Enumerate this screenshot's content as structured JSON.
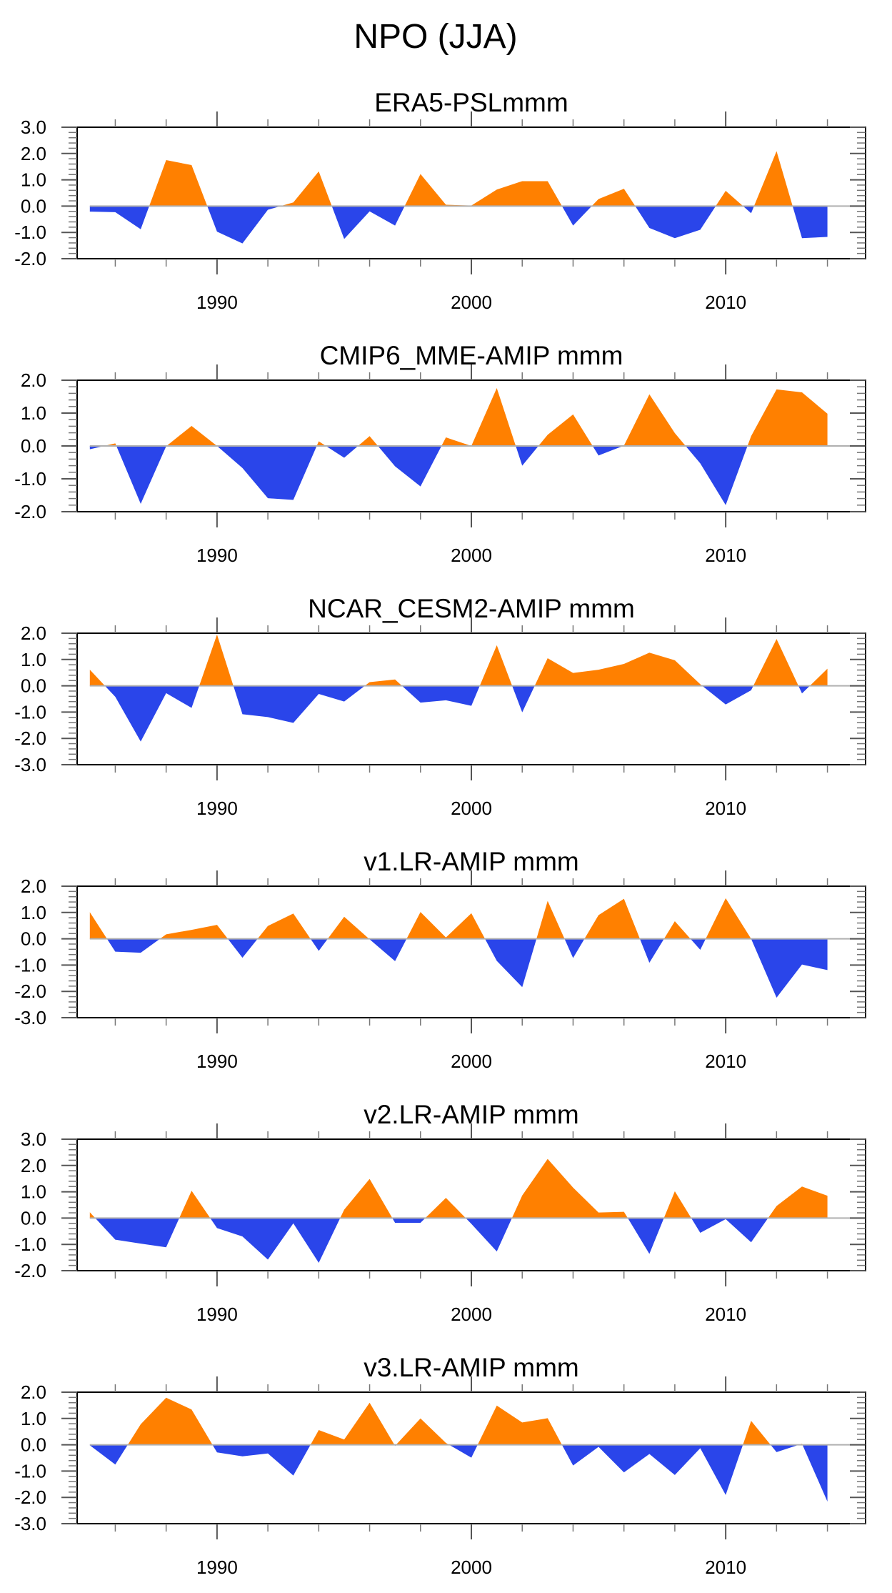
{
  "figure": {
    "title": "NPO (JJA)"
  },
  "colors": {
    "positive": "#ff8000",
    "negative": "#2a45ea",
    "zero_line": "#b0b0b0",
    "frame": "#000000"
  },
  "chart_data": [
    {
      "type": "area",
      "title": "ERA5-PSLmmm",
      "xlabel": "",
      "ylabel": "",
      "xlim": [
        1984.5,
        2015.5
      ],
      "ylim": [
        -2.0,
        3.0
      ],
      "yticks": [
        "3.0",
        "2.0",
        "1.0",
        "0.0",
        "-1.0",
        "-2.0"
      ],
      "ytick_values": [
        3,
        2,
        1,
        0,
        -1,
        -2
      ],
      "xticks": [
        "1990",
        "2000",
        "2010"
      ],
      "xtick_values": [
        1990,
        2000,
        2010
      ],
      "grid": false,
      "fill_above_zero": "positive",
      "fill_below_zero": "negative",
      "x": [
        1985,
        1986,
        1987,
        1988,
        1989,
        1990,
        1991,
        1992,
        1993,
        1994,
        1995,
        1996,
        1997,
        1998,
        1999,
        2000,
        2001,
        2002,
        2003,
        2004,
        2005,
        2006,
        2007,
        2008,
        2009,
        2010,
        2011,
        2012,
        2013,
        2014
      ],
      "values": [
        -0.21,
        -0.23,
        -0.88,
        1.75,
        1.56,
        -0.97,
        -1.42,
        -0.14,
        0.14,
        1.32,
        -1.25,
        -0.2,
        -0.74,
        1.22,
        0.05,
        0.02,
        0.63,
        0.95,
        0.95,
        -0.74,
        0.27,
        0.66,
        -0.83,
        -1.22,
        -0.9,
        0.58,
        -0.27,
        2.09,
        -1.22,
        -1.17
      ]
    },
    {
      "type": "area",
      "title": "CMIP6_MME-AMIP  mmm",
      "xlabel": "",
      "ylabel": "",
      "xlim": [
        1984.5,
        2015.5
      ],
      "ylim": [
        -2.0,
        2.0
      ],
      "yticks": [
        "2.0",
        "1.0",
        "0.0",
        "-1.0",
        "-2.0"
      ],
      "ytick_values": [
        2,
        1,
        0,
        -1,
        -2
      ],
      "xticks": [
        "1990",
        "2000",
        "2010"
      ],
      "xtick_values": [
        1990,
        2000,
        2010
      ],
      "grid": false,
      "fill_above_zero": "positive",
      "fill_below_zero": "negative",
      "x": [
        1985,
        1986,
        1987,
        1988,
        1989,
        1990,
        1991,
        1992,
        1993,
        1994,
        1995,
        1996,
        1997,
        1998,
        1999,
        2000,
        2001,
        2002,
        2003,
        2004,
        2005,
        2006,
        2007,
        2008,
        2009,
        2010,
        2011,
        2012,
        2013,
        2014
      ],
      "values": [
        -0.1,
        0.08,
        -1.76,
        -0.01,
        0.61,
        0.0,
        -0.67,
        -1.59,
        -1.64,
        0.14,
        -0.36,
        0.3,
        -0.62,
        -1.23,
        0.26,
        0.0,
        1.76,
        -0.6,
        0.34,
        0.96,
        -0.29,
        0.01,
        1.57,
        0.39,
        -0.53,
        -1.8,
        0.3,
        1.72,
        1.63,
        0.98
      ]
    },
    {
      "type": "area",
      "title": "NCAR_CESM2-AMIP  mmm",
      "xlabel": "",
      "ylabel": "",
      "xlim": [
        1984.5,
        2015.5
      ],
      "ylim": [
        -3.0,
        2.0
      ],
      "yticks": [
        "2.0",
        "1.0",
        "0.0",
        "-1.0",
        "-2.0",
        "-3.0"
      ],
      "ytick_values": [
        2,
        1,
        0,
        -1,
        -2,
        -3
      ],
      "xticks": [
        "1990",
        "2000",
        "2010"
      ],
      "xtick_values": [
        1990,
        2000,
        2010
      ],
      "grid": false,
      "fill_above_zero": "positive",
      "fill_below_zero": "negative",
      "x": [
        1985,
        1986,
        1987,
        1988,
        1989,
        1990,
        1991,
        1992,
        1993,
        1994,
        1995,
        1996,
        1997,
        1998,
        1999,
        2000,
        2001,
        2002,
        2003,
        2004,
        2005,
        2006,
        2007,
        2008,
        2009,
        2010,
        2011,
        2012,
        2013,
        2014
      ],
      "values": [
        0.61,
        -0.42,
        -2.12,
        -0.28,
        -0.84,
        1.95,
        -1.08,
        -1.19,
        -1.41,
        -0.31,
        -0.6,
        0.14,
        0.24,
        -0.64,
        -0.55,
        -0.76,
        1.54,
        -1.01,
        1.05,
        0.49,
        0.61,
        0.83,
        1.26,
        0.97,
        0.06,
        -0.71,
        -0.17,
        1.78,
        -0.29,
        0.65
      ]
    },
    {
      "type": "area",
      "title": "v1.LR-AMIP  mmm",
      "xlabel": "",
      "ylabel": "",
      "xlim": [
        1984.5,
        2015.5
      ],
      "ylim": [
        -3.0,
        2.0
      ],
      "yticks": [
        "2.0",
        "1.0",
        "0.0",
        "-1.0",
        "-2.0",
        "-3.0"
      ],
      "ytick_values": [
        2,
        1,
        0,
        -1,
        -2,
        -3
      ],
      "xticks": [
        "1990",
        "2000",
        "2010"
      ],
      "xtick_values": [
        1990,
        2000,
        2010
      ],
      "grid": false,
      "fill_above_zero": "positive",
      "fill_below_zero": "negative",
      "x": [
        1985,
        1986,
        1987,
        1988,
        1989,
        1990,
        1991,
        1992,
        1993,
        1994,
        1995,
        1996,
        1997,
        1998,
        1999,
        2000,
        2001,
        2002,
        2003,
        2004,
        2005,
        2006,
        2007,
        2008,
        2009,
        2010,
        2011,
        2012,
        2013,
        2014
      ],
      "values": [
        1.01,
        -0.49,
        -0.53,
        0.17,
        0.34,
        0.53,
        -0.72,
        0.49,
        0.96,
        -0.46,
        0.84,
        -0.02,
        -0.85,
        1.02,
        0.05,
        0.97,
        -0.84,
        -1.84,
        1.44,
        -0.73,
        0.9,
        1.52,
        -0.91,
        0.67,
        -0.42,
        1.54,
        0.0,
        -2.24,
        -0.98,
        -1.19
      ]
    },
    {
      "type": "area",
      "title": "v2.LR-AMIP  mmm",
      "xlabel": "",
      "ylabel": "",
      "xlim": [
        1984.5,
        2015.5
      ],
      "ylim": [
        -2.0,
        3.0
      ],
      "yticks": [
        "3.0",
        "2.0",
        "1.0",
        "0.0",
        "-1.0",
        "-2.0"
      ],
      "ytick_values": [
        3,
        2,
        1,
        0,
        -1,
        -2
      ],
      "xticks": [
        "1990",
        "2000",
        "2010"
      ],
      "xtick_values": [
        1990,
        2000,
        2010
      ],
      "grid": false,
      "fill_above_zero": "positive",
      "fill_below_zero": "negative",
      "x": [
        1985,
        1986,
        1987,
        1988,
        1989,
        1990,
        1991,
        1992,
        1993,
        1994,
        1995,
        1996,
        1997,
        1998,
        1999,
        2000,
        2001,
        2002,
        2003,
        2004,
        2005,
        2006,
        2007,
        2008,
        2009,
        2010,
        2011,
        2012,
        2013,
        2014
      ],
      "values": [
        0.22,
        -0.82,
        -0.97,
        -1.11,
        1.04,
        -0.38,
        -0.7,
        -1.58,
        -0.2,
        -1.7,
        0.32,
        1.49,
        -0.18,
        -0.18,
        0.77,
        -0.22,
        -1.27,
        0.86,
        2.25,
        1.16,
        0.21,
        0.24,
        -1.36,
        1.02,
        -0.56,
        -0.04,
        -0.92,
        0.46,
        1.2,
        0.85
      ]
    },
    {
      "type": "area",
      "title": "v3.LR-AMIP  mmm",
      "xlabel": "",
      "ylabel": "",
      "xlim": [
        1984.5,
        2015.5
      ],
      "ylim": [
        -3.0,
        2.0
      ],
      "yticks": [
        "2.0",
        "1.0",
        "0.0",
        "-1.0",
        "-2.0",
        "-3.0"
      ],
      "ytick_values": [
        2,
        1,
        0,
        -1,
        -2,
        -3
      ],
      "xticks": [
        "1990",
        "2000",
        "2010"
      ],
      "xtick_values": [
        1990,
        2000,
        2010
      ],
      "grid": false,
      "fill_above_zero": "positive",
      "fill_below_zero": "negative",
      "x": [
        1985,
        1986,
        1987,
        1988,
        1989,
        1990,
        1991,
        1992,
        1993,
        1994,
        1995,
        1996,
        1997,
        1998,
        1999,
        2000,
        2001,
        2002,
        2003,
        2004,
        2005,
        2006,
        2007,
        2008,
        2009,
        2010,
        2011,
        2012,
        2013,
        2014
      ],
      "values": [
        -0.02,
        -0.75,
        0.78,
        1.79,
        1.34,
        -0.29,
        -0.44,
        -0.33,
        -1.17,
        0.56,
        0.2,
        1.6,
        -0.04,
        1.0,
        0.07,
        -0.49,
        1.49,
        0.85,
        1.01,
        -0.79,
        -0.08,
        -1.05,
        -0.35,
        -1.15,
        -0.13,
        -1.91,
        0.91,
        -0.28,
        0.04,
        -2.16
      ]
    }
  ]
}
